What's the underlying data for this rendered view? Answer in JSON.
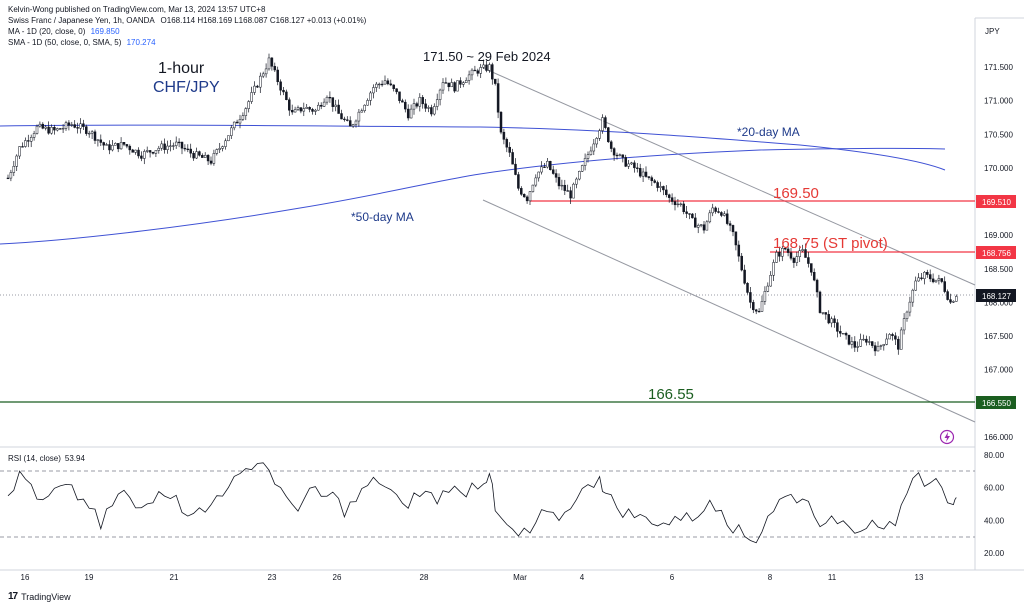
{
  "header": {
    "publish": "Kelvin-Wong published on TradingView.com, Mar 13, 2024 13:57 UTC+8",
    "symbol_line": "Swiss Franc / Japanese Yen, 1h, OANDA",
    "ohlc": "O168.114 H168.169 L168.087 C168.127 +0.013 (+0.01%)",
    "ma_label": "MA - 1D (20, close, 0)",
    "ma_value": "169.850",
    "sma_label": "SMA - 1D (50, close, 0, SMA, 5)",
    "sma_value": "170.274",
    "currency": "JPY"
  },
  "colors": {
    "candle": "#131722",
    "ma": "#2962ff",
    "resistance": "#f23645",
    "support": "#1b5e20",
    "channel": "#787b86",
    "annotation_blue": "#1e3a8a",
    "annotation_red": "#e53935",
    "annotation_green": "#1b5e20"
  },
  "annotations": {
    "timeframe": "1-hour",
    "pair": "CHF/JPY",
    "peak": "171.50 ~ 29 Feb 2024",
    "ma20": "*20-day MA",
    "ma50": "*50-day MA",
    "level_1": "169.50",
    "level_2": "168.75 (ST pivot)",
    "level_3": "166.55"
  },
  "price_tags": {
    "r1": "169.510",
    "r2": "168.756",
    "last": "168.127",
    "s1": "166.550"
  },
  "rsi": {
    "label": "RSI (14, close)",
    "value": "53.94",
    "ticks": [
      "80.00",
      "60.00",
      "40.00",
      "20.00"
    ]
  },
  "footer": {
    "brand": "TradingView"
  },
  "chart_data": {
    "type": "candlestick",
    "price_axis_ticks": [
      "171.500",
      "171.000",
      "170.500",
      "170.000",
      "169.500",
      "169.000",
      "168.500",
      "168.000",
      "167.500",
      "167.000",
      "166.500",
      "166.000"
    ],
    "x_tick_labels": [
      "16",
      "19",
      "21",
      "23",
      "26",
      "28",
      "Mar",
      "4",
      "6",
      "8",
      "11",
      "13"
    ],
    "ylim": [
      165.8,
      171.9
    ],
    "horizontal_levels": [
      169.51,
      168.756,
      166.55
    ],
    "last_price": 168.127,
    "price_path": [
      [
        0,
        169.85
      ],
      [
        4,
        170.3
      ],
      [
        10,
        170.6
      ],
      [
        16,
        170.55
      ],
      [
        22,
        170.65
      ],
      [
        28,
        170.55
      ],
      [
        34,
        170.3
      ],
      [
        40,
        170.35
      ],
      [
        46,
        170.2
      ],
      [
        52,
        170.3
      ],
      [
        58,
        170.35
      ],
      [
        64,
        170.2
      ],
      [
        70,
        170.1
      ],
      [
        76,
        170.5
      ],
      [
        82,
        170.9
      ],
      [
        86,
        171.25
      ],
      [
        90,
        171.6
      ],
      [
        94,
        171.2
      ],
      [
        98,
        170.8
      ],
      [
        102,
        170.9
      ],
      [
        106,
        170.85
      ],
      [
        110,
        171.1
      ],
      [
        114,
        170.8
      ],
      [
        118,
        170.6
      ],
      [
        122,
        170.9
      ],
      [
        126,
        171.2
      ],
      [
        130,
        171.3
      ],
      [
        134,
        171.1
      ],
      [
        138,
        170.8
      ],
      [
        142,
        171.0
      ],
      [
        146,
        170.85
      ],
      [
        150,
        171.3
      ],
      [
        154,
        171.2
      ],
      [
        158,
        171.35
      ],
      [
        162,
        171.45
      ],
      [
        166,
        171.5
      ],
      [
        168,
        171.2
      ],
      [
        170,
        170.5
      ],
      [
        173,
        170.2
      ],
      [
        176,
        169.7
      ],
      [
        179,
        169.55
      ],
      [
        182,
        169.9
      ],
      [
        186,
        170.05
      ],
      [
        190,
        169.75
      ],
      [
        194,
        169.6
      ],
      [
        198,
        170.0
      ],
      [
        202,
        170.4
      ],
      [
        205,
        170.7
      ],
      [
        208,
        170.3
      ],
      [
        212,
        170.1
      ],
      [
        216,
        170.0
      ],
      [
        220,
        169.85
      ],
      [
        224,
        169.75
      ],
      [
        228,
        169.55
      ],
      [
        232,
        169.45
      ],
      [
        236,
        169.2
      ],
      [
        240,
        169.1
      ],
      [
        243,
        169.4
      ],
      [
        246,
        169.35
      ],
      [
        250,
        169.0
      ],
      [
        253,
        168.5
      ],
      [
        256,
        168.0
      ],
      [
        259,
        167.85
      ],
      [
        262,
        168.3
      ],
      [
        265,
        168.7
      ],
      [
        268,
        168.8
      ],
      [
        271,
        168.65
      ],
      [
        274,
        168.75
      ],
      [
        277,
        168.5
      ],
      [
        280,
        167.9
      ],
      [
        284,
        167.7
      ],
      [
        288,
        167.5
      ],
      [
        292,
        167.35
      ],
      [
        296,
        167.45
      ],
      [
        300,
        167.3
      ],
      [
        304,
        167.55
      ],
      [
        307,
        167.35
      ],
      [
        310,
        167.9
      ],
      [
        313,
        168.3
      ],
      [
        316,
        168.4
      ],
      [
        319,
        168.35
      ],
      [
        322,
        168.3
      ],
      [
        325,
        168.0
      ],
      [
        327,
        168.127
      ]
    ],
    "rsi_path": [
      [
        0,
        55
      ],
      [
        4,
        68
      ],
      [
        8,
        62
      ],
      [
        12,
        50
      ],
      [
        16,
        58
      ],
      [
        20,
        60
      ],
      [
        24,
        54
      ],
      [
        28,
        49
      ],
      [
        32,
        35
      ],
      [
        36,
        50
      ],
      [
        40,
        58
      ],
      [
        44,
        46
      ],
      [
        48,
        50
      ],
      [
        52,
        60
      ],
      [
        56,
        56
      ],
      [
        60,
        47
      ],
      [
        64,
        46
      ],
      [
        68,
        44
      ],
      [
        72,
        55
      ],
      [
        76,
        62
      ],
      [
        80,
        66
      ],
      [
        84,
        74
      ],
      [
        88,
        76
      ],
      [
        92,
        64
      ],
      [
        96,
        52
      ],
      [
        100,
        48
      ],
      [
        104,
        58
      ],
      [
        108,
        54
      ],
      [
        112,
        56
      ],
      [
        116,
        45
      ],
      [
        120,
        52
      ],
      [
        124,
        61
      ],
      [
        128,
        64
      ],
      [
        132,
        58
      ],
      [
        136,
        48
      ],
      [
        140,
        55
      ],
      [
        144,
        57
      ],
      [
        148,
        52
      ],
      [
        152,
        60
      ],
      [
        156,
        56
      ],
      [
        160,
        62
      ],
      [
        164,
        64
      ],
      [
        166,
        70
      ],
      [
        168,
        45
      ],
      [
        172,
        36
      ],
      [
        176,
        30
      ],
      [
        180,
        32
      ],
      [
        184,
        44
      ],
      [
        188,
        42
      ],
      [
        192,
        44
      ],
      [
        196,
        55
      ],
      [
        200,
        60
      ],
      [
        204,
        68
      ],
      [
        206,
        56
      ],
      [
        210,
        48
      ],
      [
        214,
        45
      ],
      [
        218,
        42
      ],
      [
        222,
        40
      ],
      [
        226,
        38
      ],
      [
        230,
        40
      ],
      [
        234,
        46
      ],
      [
        238,
        40
      ],
      [
        242,
        53
      ],
      [
        246,
        48
      ],
      [
        250,
        35
      ],
      [
        254,
        30
      ],
      [
        258,
        28
      ],
      [
        262,
        43
      ],
      [
        266,
        52
      ],
      [
        270,
        55
      ],
      [
        274,
        54
      ],
      [
        278,
        45
      ],
      [
        282,
        36
      ],
      [
        286,
        40
      ],
      [
        290,
        38
      ],
      [
        294,
        35
      ],
      [
        298,
        42
      ],
      [
        302,
        36
      ],
      [
        306,
        34
      ],
      [
        310,
        55
      ],
      [
        314,
        68
      ],
      [
        318,
        63
      ],
      [
        322,
        62
      ],
      [
        326,
        48
      ],
      [
        327,
        54
      ]
    ]
  }
}
